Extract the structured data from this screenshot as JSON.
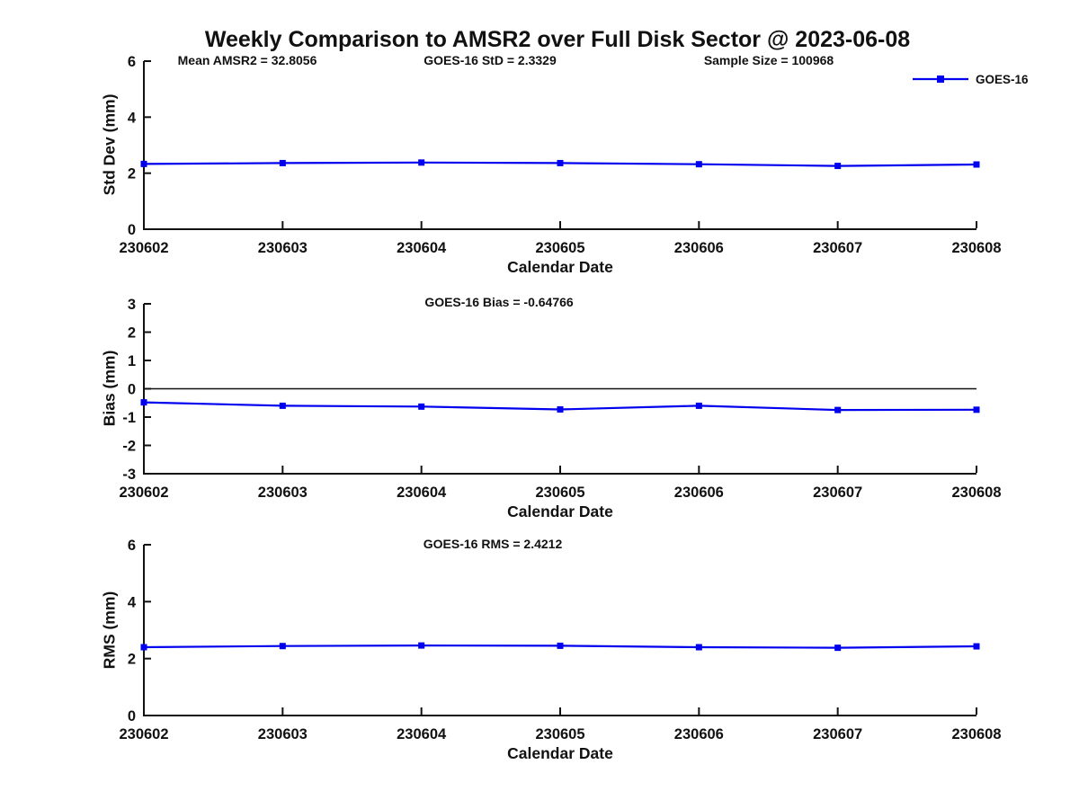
{
  "figure": {
    "title": "Weekly Comparison to AMSR2 over Full Disk Sector @ 2023-06-08",
    "background_color": "#ffffff",
    "axis_color": "#111111",
    "text_color": "#111111",
    "legend": {
      "label": "GOES-16",
      "series_color": "#0000ee",
      "marker": "square",
      "position": "top-right-outside"
    }
  },
  "chart_data": [
    {
      "type": "line",
      "id": "std-dev-panel",
      "annotations": [
        "Mean AMSR2 = 32.8056",
        "GOES-16 StD = 2.3329",
        "Sample Size = 100968"
      ],
      "categories": [
        "230602",
        "230603",
        "230604",
        "230605",
        "230606",
        "230607",
        "230608"
      ],
      "series": [
        {
          "name": "GOES-16",
          "color": "#0000ee",
          "marker": "square",
          "values": [
            2.33,
            2.36,
            2.38,
            2.36,
            2.32,
            2.26,
            2.31
          ]
        }
      ],
      "xlabel": "Calendar Date",
      "ylabel": "Std Dev (mm)",
      "ylim": [
        0,
        6
      ],
      "yticks": [
        0,
        2,
        4,
        6
      ],
      "grid": false,
      "zero_line": false
    },
    {
      "type": "line",
      "id": "bias-panel",
      "annotations": [
        "GOES-16 Bias  = -0.64766"
      ],
      "categories": [
        "230602",
        "230603",
        "230604",
        "230605",
        "230606",
        "230607",
        "230608"
      ],
      "series": [
        {
          "name": "GOES-16",
          "color": "#0000ee",
          "marker": "square",
          "values": [
            -0.48,
            -0.6,
            -0.63,
            -0.73,
            -0.6,
            -0.75,
            -0.74
          ]
        }
      ],
      "xlabel": "Calendar Date",
      "ylabel": "Bias (mm)",
      "ylim": [
        -3,
        3
      ],
      "yticks": [
        -3,
        -2,
        -1,
        0,
        1,
        2,
        3
      ],
      "grid": false,
      "zero_line": true
    },
    {
      "type": "line",
      "id": "rms-panel",
      "annotations": [
        "GOES-16 RMS = 2.4212"
      ],
      "categories": [
        "230602",
        "230603",
        "230604",
        "230605",
        "230606",
        "230607",
        "230608"
      ],
      "series": [
        {
          "name": "GOES-16",
          "color": "#0000ee",
          "marker": "square",
          "values": [
            2.4,
            2.44,
            2.46,
            2.45,
            2.4,
            2.38,
            2.43
          ]
        }
      ],
      "xlabel": "Calendar Date",
      "ylabel": "RMS (mm)",
      "ylim": [
        0,
        6
      ],
      "yticks": [
        0,
        2,
        4,
        6
      ],
      "grid": false,
      "zero_line": false
    }
  ]
}
